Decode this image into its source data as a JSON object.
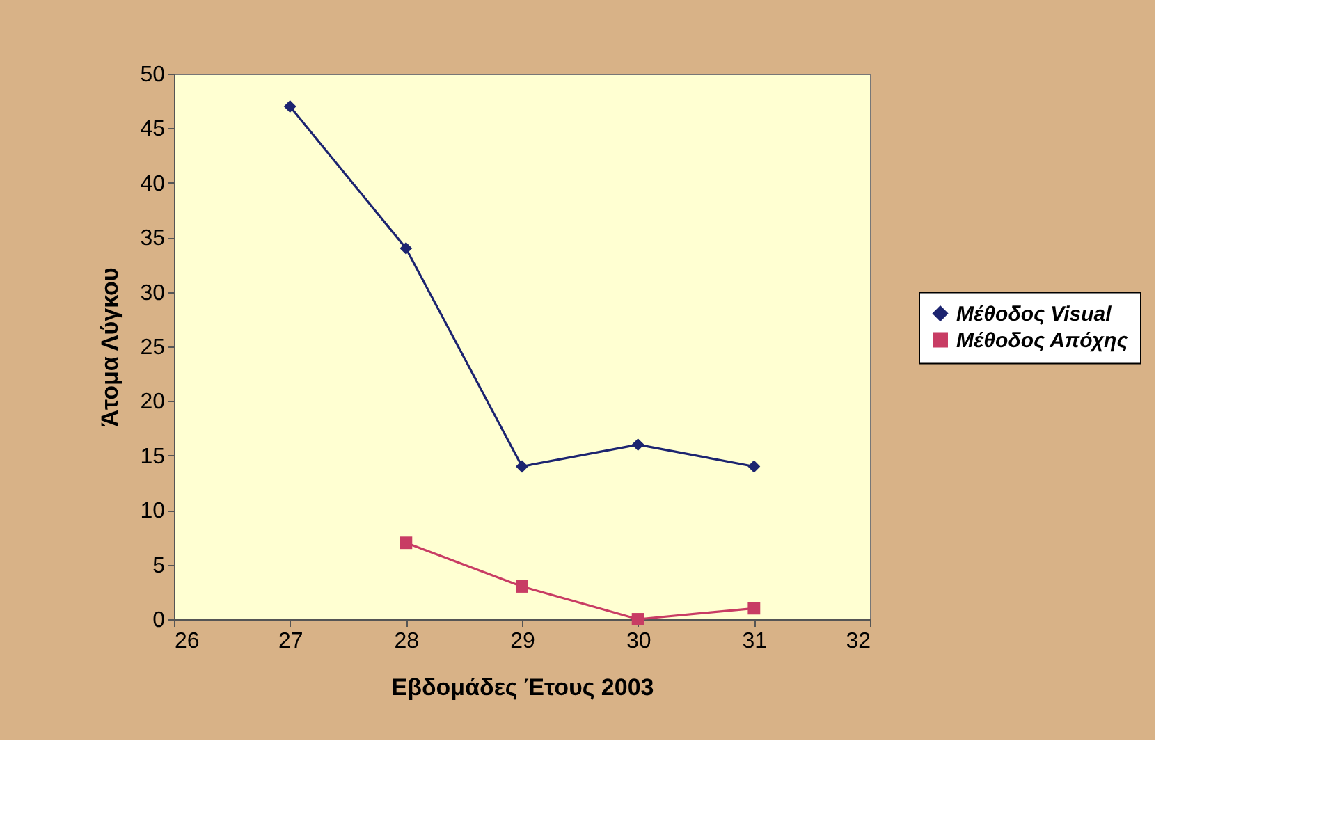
{
  "chart_data": {
    "type": "line",
    "xlabel": "Εβδομάδες Έτους 2003",
    "ylabel": "Άτομα Λύγκου",
    "xlim": [
      26,
      32
    ],
    "xticks": [
      26,
      27,
      28,
      29,
      30,
      31,
      32
    ],
    "ylim": [
      0,
      50
    ],
    "yticks": [
      0,
      5,
      10,
      15,
      20,
      25,
      30,
      35,
      40,
      45,
      50
    ],
    "grid": false,
    "legend": "right",
    "line_style": "solid",
    "series": [
      {
        "name": "Μέθοδος Visual",
        "color": "#1c2470",
        "marker": "diamond",
        "x": [
          27,
          28,
          29,
          30,
          31
        ],
        "values": [
          47,
          34,
          14,
          16,
          14
        ]
      },
      {
        "name": "Μέθοδος Απόχης",
        "color": "#c83c64",
        "marker": "square",
        "x": [
          28,
          29,
          30,
          31
        ],
        "values": [
          7,
          3,
          0,
          1
        ]
      }
    ]
  }
}
